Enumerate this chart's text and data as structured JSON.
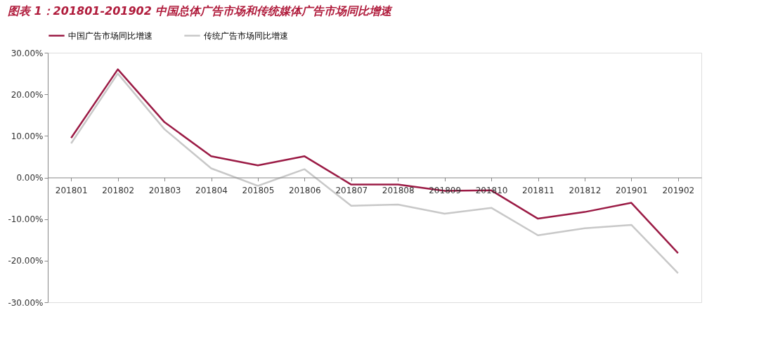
{
  "chart_data": {
    "type": "line",
    "title": "图表 1：201801-201902 中国总体广告市场和传统媒体广告市场同比增速",
    "categories": [
      "201801",
      "201802",
      "201803",
      "201804",
      "201805",
      "201806",
      "201807",
      "201808",
      "201809",
      "201810",
      "201811",
      "201812",
      "201901",
      "201902"
    ],
    "series": [
      {
        "name": "中国广告市场同比增速",
        "color": "#9b1b45",
        "values": [
          9.5,
          26,
          13.3,
          5.1,
          2.9,
          5.1,
          -1.7,
          -1.7,
          -3.2,
          -3.1,
          -9.9,
          -8.3,
          -6.1,
          -18.2
        ]
      },
      {
        "name": "传统广告市场同比增速",
        "color": "#c8c8c8",
        "values": [
          8.2,
          25,
          11.6,
          2.2,
          -2,
          2,
          -6.8,
          -6.5,
          -8.7,
          -7.3,
          -13.9,
          -12.2,
          -11.4,
          -23
        ]
      }
    ],
    "ylim": [
      -30,
      30
    ],
    "yticks": [
      {
        "value": -30,
        "label": "-30.00%"
      },
      {
        "value": -20,
        "label": "-20.00%"
      },
      {
        "value": -10,
        "label": "-10.00%"
      },
      {
        "value": 0,
        "label": "0.00%"
      },
      {
        "value": 10,
        "label": "10.00%"
      },
      {
        "value": 20,
        "label": "20.00%"
      },
      {
        "value": 30,
        "label": "30.00%"
      }
    ],
    "grid": false,
    "legend": "top",
    "marker": "none",
    "line_style": "solid"
  }
}
